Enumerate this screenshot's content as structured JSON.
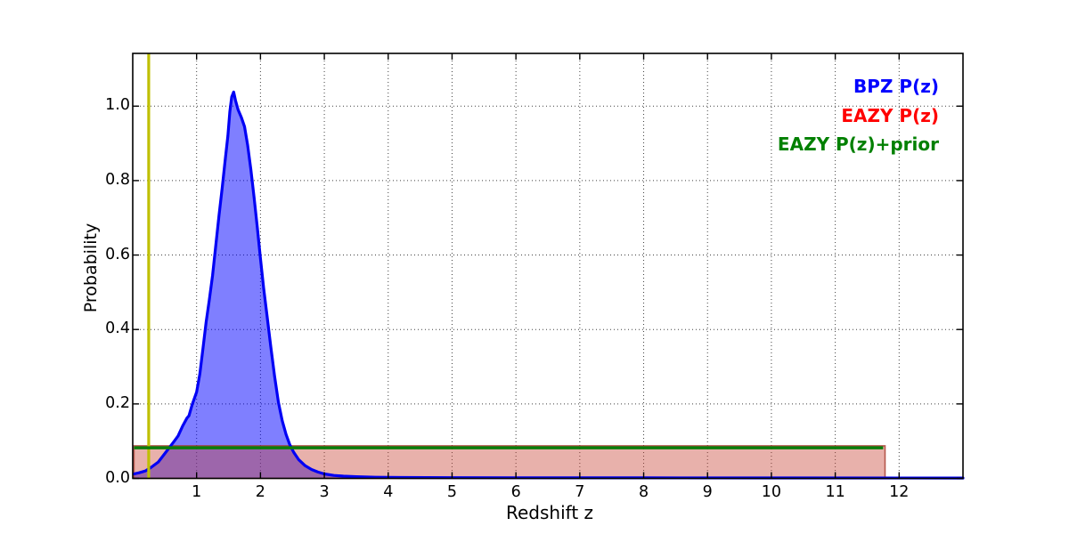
{
  "chart_data": {
    "type": "line",
    "title": "",
    "xlabel": "Redshift z",
    "ylabel": "Probability",
    "xlim": [
      0,
      13
    ],
    "ylim": [
      0,
      1.1417
    ],
    "xticks": [
      1,
      2,
      3,
      4,
      5,
      6,
      7,
      8,
      9,
      10,
      11,
      12
    ],
    "yticks": [
      0,
      0.2,
      0.4,
      0.6,
      0.8,
      1.0
    ],
    "ytick_labels": [
      "0.0",
      "0.2",
      "0.4",
      "0.6",
      "0.8",
      "1.0"
    ],
    "grid": "dotted",
    "legend": {
      "position": "upper-right",
      "entries": [
        {
          "label": "BPZ P(z)",
          "color": "#0000ff"
        },
        {
          "label": "EAZY P(z)",
          "color": "#ff0000"
        },
        {
          "label": "EAZY P(z)+prior",
          "color": "#008000"
        }
      ]
    },
    "series": [
      {
        "name": "BPZ P(z)",
        "type": "area-line",
        "line_color": "#0000f5",
        "fill_color": "rgba(0,0,255,0.5)",
        "points": [
          [
            0.02,
            0.012
          ],
          [
            0.1,
            0.015
          ],
          [
            0.2,
            0.02
          ],
          [
            0.29,
            0.03
          ],
          [
            0.4,
            0.044
          ],
          [
            0.5,
            0.066
          ],
          [
            0.57,
            0.082
          ],
          [
            0.65,
            0.1
          ],
          [
            0.71,
            0.114
          ],
          [
            0.78,
            0.14
          ],
          [
            0.85,
            0.162
          ],
          [
            0.88,
            0.168
          ],
          [
            0.93,
            0.198
          ],
          [
            1.0,
            0.232
          ],
          [
            1.05,
            0.28
          ],
          [
            1.1,
            0.35
          ],
          [
            1.15,
            0.42
          ],
          [
            1.2,
            0.48
          ],
          [
            1.25,
            0.545
          ],
          [
            1.3,
            0.625
          ],
          [
            1.35,
            0.705
          ],
          [
            1.4,
            0.78
          ],
          [
            1.45,
            0.86
          ],
          [
            1.49,
            0.92
          ],
          [
            1.52,
            0.985
          ],
          [
            1.55,
            1.025
          ],
          [
            1.58,
            1.038
          ],
          [
            1.61,
            1.015
          ],
          [
            1.65,
            0.99
          ],
          [
            1.7,
            0.97
          ],
          [
            1.75,
            0.945
          ],
          [
            1.8,
            0.895
          ],
          [
            1.85,
            0.83
          ],
          [
            1.9,
            0.755
          ],
          [
            1.95,
            0.675
          ],
          [
            2.0,
            0.59
          ],
          [
            2.05,
            0.51
          ],
          [
            2.1,
            0.44
          ],
          [
            2.16,
            0.355
          ],
          [
            2.22,
            0.275
          ],
          [
            2.28,
            0.205
          ],
          [
            2.34,
            0.155
          ],
          [
            2.4,
            0.118
          ],
          [
            2.46,
            0.09
          ],
          [
            2.52,
            0.07
          ],
          [
            2.6,
            0.05
          ],
          [
            2.7,
            0.034
          ],
          [
            2.8,
            0.024
          ],
          [
            2.9,
            0.017
          ],
          [
            3.0,
            0.012
          ],
          [
            3.15,
            0.008
          ],
          [
            3.3,
            0.006
          ],
          [
            3.5,
            0.0045
          ],
          [
            3.8,
            0.0032
          ],
          [
            4.2,
            0.0025
          ],
          [
            5.0,
            0.002
          ],
          [
            6.0,
            0.0017
          ],
          [
            8.0,
            0.0014
          ],
          [
            10.0,
            0.0012
          ],
          [
            13.0,
            0.001
          ]
        ]
      },
      {
        "name": "EAZY P(z)",
        "type": "filled-box",
        "fill_color": "rgba(200,70,55,0.42)",
        "edge_color": "rgba(165,55,42,0.8)",
        "x_range": [
          0.02,
          11.78
        ],
        "y_top": 0.0875
      },
      {
        "name": "EAZY P(z)+prior",
        "type": "hline",
        "color": "#0a7d0a",
        "y": 0.0822,
        "x_range": [
          0.02,
          11.75
        ]
      },
      {
        "name": "redshift-marker",
        "type": "vline",
        "color": "#bfbf00",
        "x": 0.25
      }
    ]
  }
}
